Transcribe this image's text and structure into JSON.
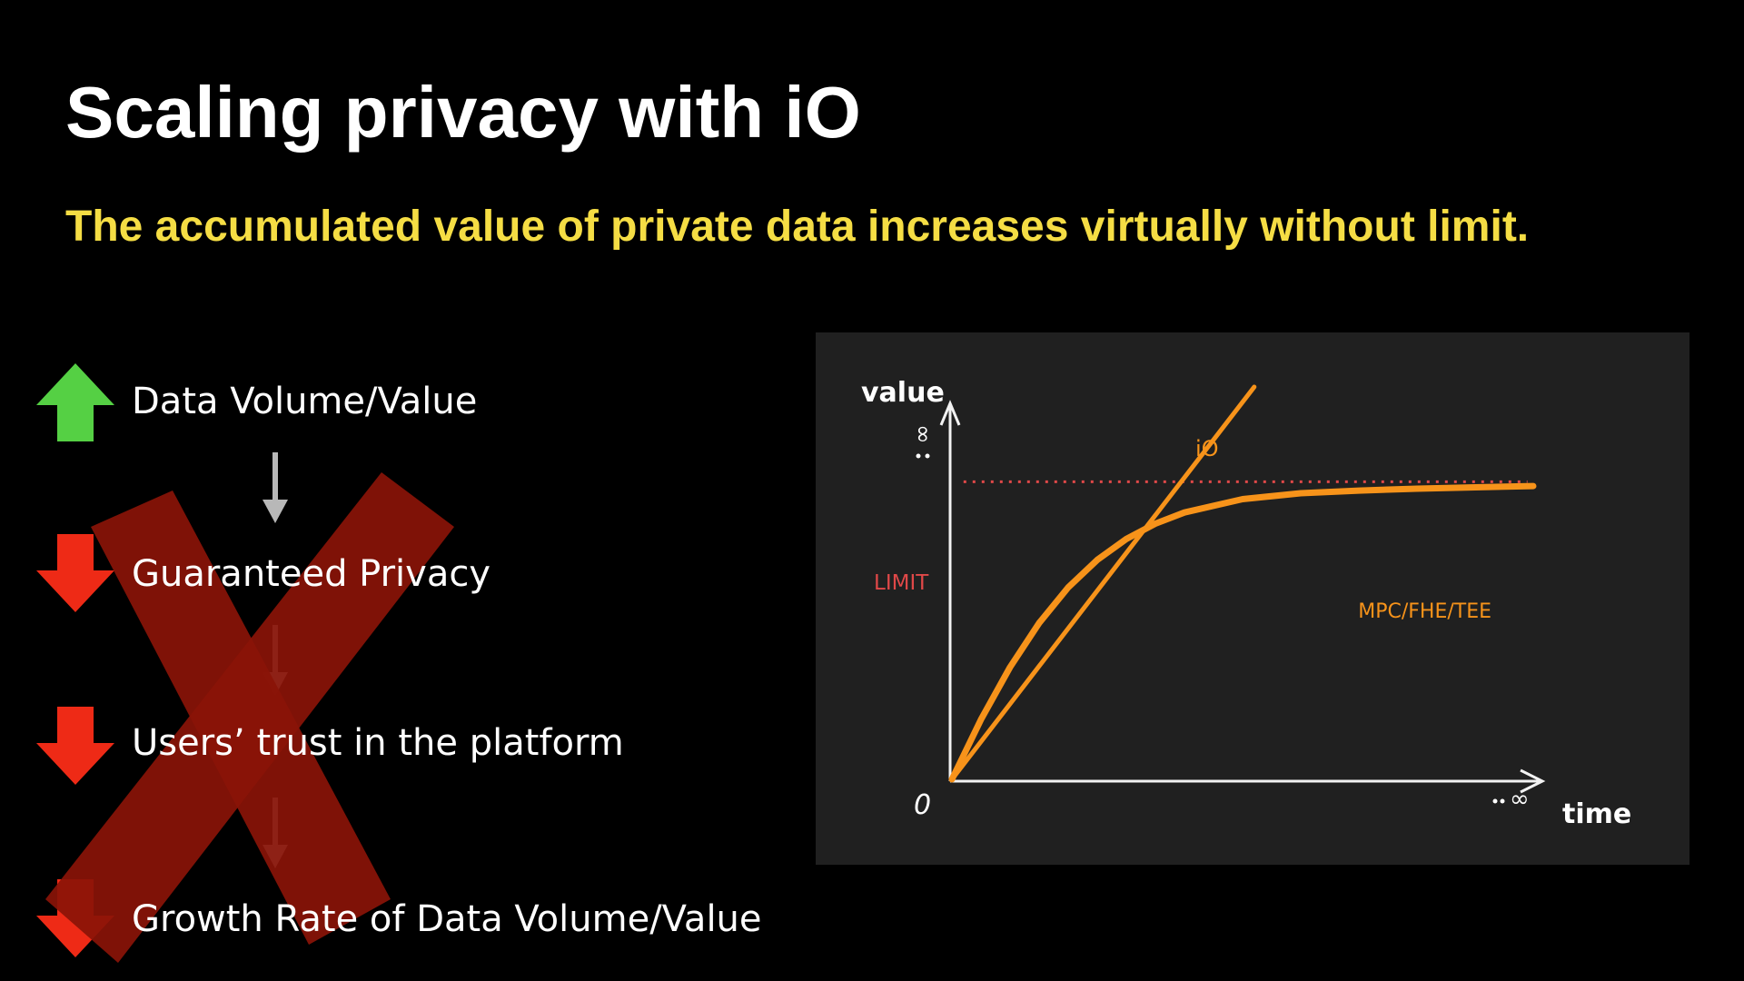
{
  "slide": {
    "title": "Scaling privacy with iO",
    "subtitle": "The accumulated value of private data increases virtually without limit."
  },
  "flow": {
    "steps": [
      {
        "label": "Data Volume/Value",
        "direction": "up",
        "color": "#55d044"
      },
      {
        "label": "Guaranteed Privacy",
        "direction": "down",
        "color": "#ee2a16"
      },
      {
        "label": "Users’ trust in the platform",
        "direction": "down",
        "color": "#ee2a16"
      },
      {
        "label": "Growth Rate of Data Volume/Value",
        "direction": "down",
        "color": "#ee2a16"
      }
    ],
    "connector_color": "#b8b8b8",
    "cross_color": "#8a1408"
  },
  "chart_data": {
    "type": "line",
    "xlabel": "time",
    "ylabel": "value",
    "origin_label": "0",
    "x_end_label": "∞",
    "y_end_label": "∞",
    "series": [
      {
        "name": "iO",
        "color": "#f7931a",
        "x": [
          0,
          0.52
        ],
        "y": [
          0,
          1.2
        ]
      },
      {
        "name": "MPC/FHE/TEE",
        "color": "#f7931a",
        "x": [
          0,
          0.05,
          0.1,
          0.15,
          0.2,
          0.25,
          0.3,
          0.35,
          0.4,
          0.5,
          0.6,
          0.7,
          0.8,
          0.9,
          1.0
        ],
        "y": [
          0,
          0.183,
          0.343,
          0.478,
          0.587,
          0.671,
          0.735,
          0.782,
          0.816,
          0.857,
          0.875,
          0.883,
          0.889,
          0.893,
          0.897
        ]
      },
      {
        "name": "LIMIT",
        "color": "#e04848",
        "style": "dotted",
        "x": [
          0.02,
          0.99
        ],
        "y": [
          0.91,
          0.91
        ]
      }
    ],
    "grid": false
  },
  "colors": {
    "background": "#000000",
    "panel": "#202020",
    "title": "#ffffff",
    "subtitle": "#f5dd44",
    "axis": "#f2f2f2"
  }
}
